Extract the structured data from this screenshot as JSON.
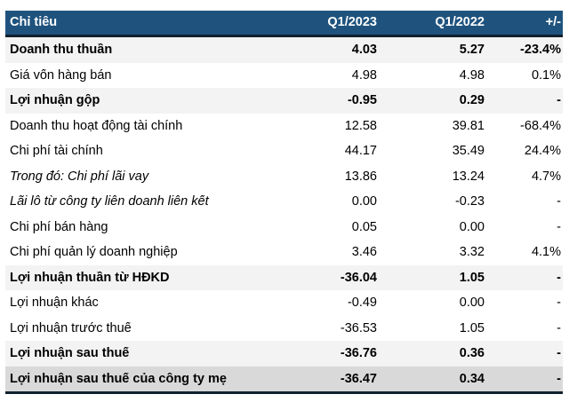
{
  "colors": {
    "header_bg": "#1F537E",
    "header_text": "#FFFFFF",
    "border_dark": "#10202F",
    "row_highlight": "#F3F3F3",
    "row_final": "#D9D9D9",
    "text": "#000000",
    "page_bg": "#FFFFFF"
  },
  "chart_data": {
    "type": "table",
    "title": "",
    "columns": [
      "Chỉ tiêu",
      "Q1/2023",
      "Q1/2022",
      "+/-"
    ],
    "layout_hints": {
      "header_style": "dark-blue background, white bold text",
      "highlight_rows_style": "bold with light gray background",
      "final_row_style": "bold with darker gray background",
      "grid": "no inner borders, thick dark rule under header and under last row"
    },
    "rows": [
      {
        "label": "Doanh thu thuần",
        "q1_2023": "4.03",
        "q1_2022": "5.27",
        "change": "-23.4%",
        "emphasis": "bold",
        "highlight": true
      },
      {
        "label": "Giá vốn hàng bán",
        "q1_2023": "4.98",
        "q1_2022": "4.98",
        "change": "0.1%",
        "emphasis": "normal",
        "highlight": false
      },
      {
        "label": "Lợi nhuận gộp",
        "q1_2023": "-0.95",
        "q1_2022": "0.29",
        "change": "-",
        "emphasis": "bold",
        "highlight": true
      },
      {
        "label": "Doanh thu hoạt động tài chính",
        "q1_2023": "12.58",
        "q1_2022": "39.81",
        "change": "-68.4%",
        "emphasis": "normal",
        "highlight": false
      },
      {
        "label": "Chi phí tài chính",
        "q1_2023": "44.17",
        "q1_2022": "35.49",
        "change": "24.4%",
        "emphasis": "normal",
        "highlight": false
      },
      {
        "label": "Trong đó: Chi phí lãi vay",
        "q1_2023": "13.86",
        "q1_2022": "13.24",
        "change": "4.7%",
        "emphasis": "italic-label",
        "highlight": false
      },
      {
        "label": "Lãi lỗ từ công ty liên doanh liên kết",
        "q1_2023": "0.00",
        "q1_2022": "-0.23",
        "change": "-",
        "emphasis": "italic-label",
        "highlight": false
      },
      {
        "label": "Chi phí bán hàng",
        "q1_2023": "0.05",
        "q1_2022": "0.00",
        "change": "-",
        "emphasis": "normal",
        "highlight": false
      },
      {
        "label": "Chi phí quản lý doanh nghiệp",
        "q1_2023": "3.46",
        "q1_2022": "3.32",
        "change": "4.1%",
        "emphasis": "normal",
        "highlight": false
      },
      {
        "label": "Lợi nhuận thuần từ HĐKD",
        "q1_2023": "-36.04",
        "q1_2022": "1.05",
        "change": "-",
        "emphasis": "bold",
        "highlight": true
      },
      {
        "label": "Lợi nhuận khác",
        "q1_2023": "-0.49",
        "q1_2022": "0.00",
        "change": "-",
        "emphasis": "normal",
        "highlight": false
      },
      {
        "label": "Lợi nhuận trước thuế",
        "q1_2023": "-36.53",
        "q1_2022": "1.05",
        "change": "-",
        "emphasis": "normal",
        "highlight": false
      },
      {
        "label": "Lợi nhuận sau thuế",
        "q1_2023": "-36.76",
        "q1_2022": "0.36",
        "change": "-",
        "emphasis": "bold",
        "highlight": true
      },
      {
        "label": "Lợi nhuận sau thuế của công ty mẹ",
        "q1_2023": "-36.47",
        "q1_2022": "0.34",
        "change": "-",
        "emphasis": "bold",
        "highlight": true,
        "final": true
      }
    ]
  }
}
